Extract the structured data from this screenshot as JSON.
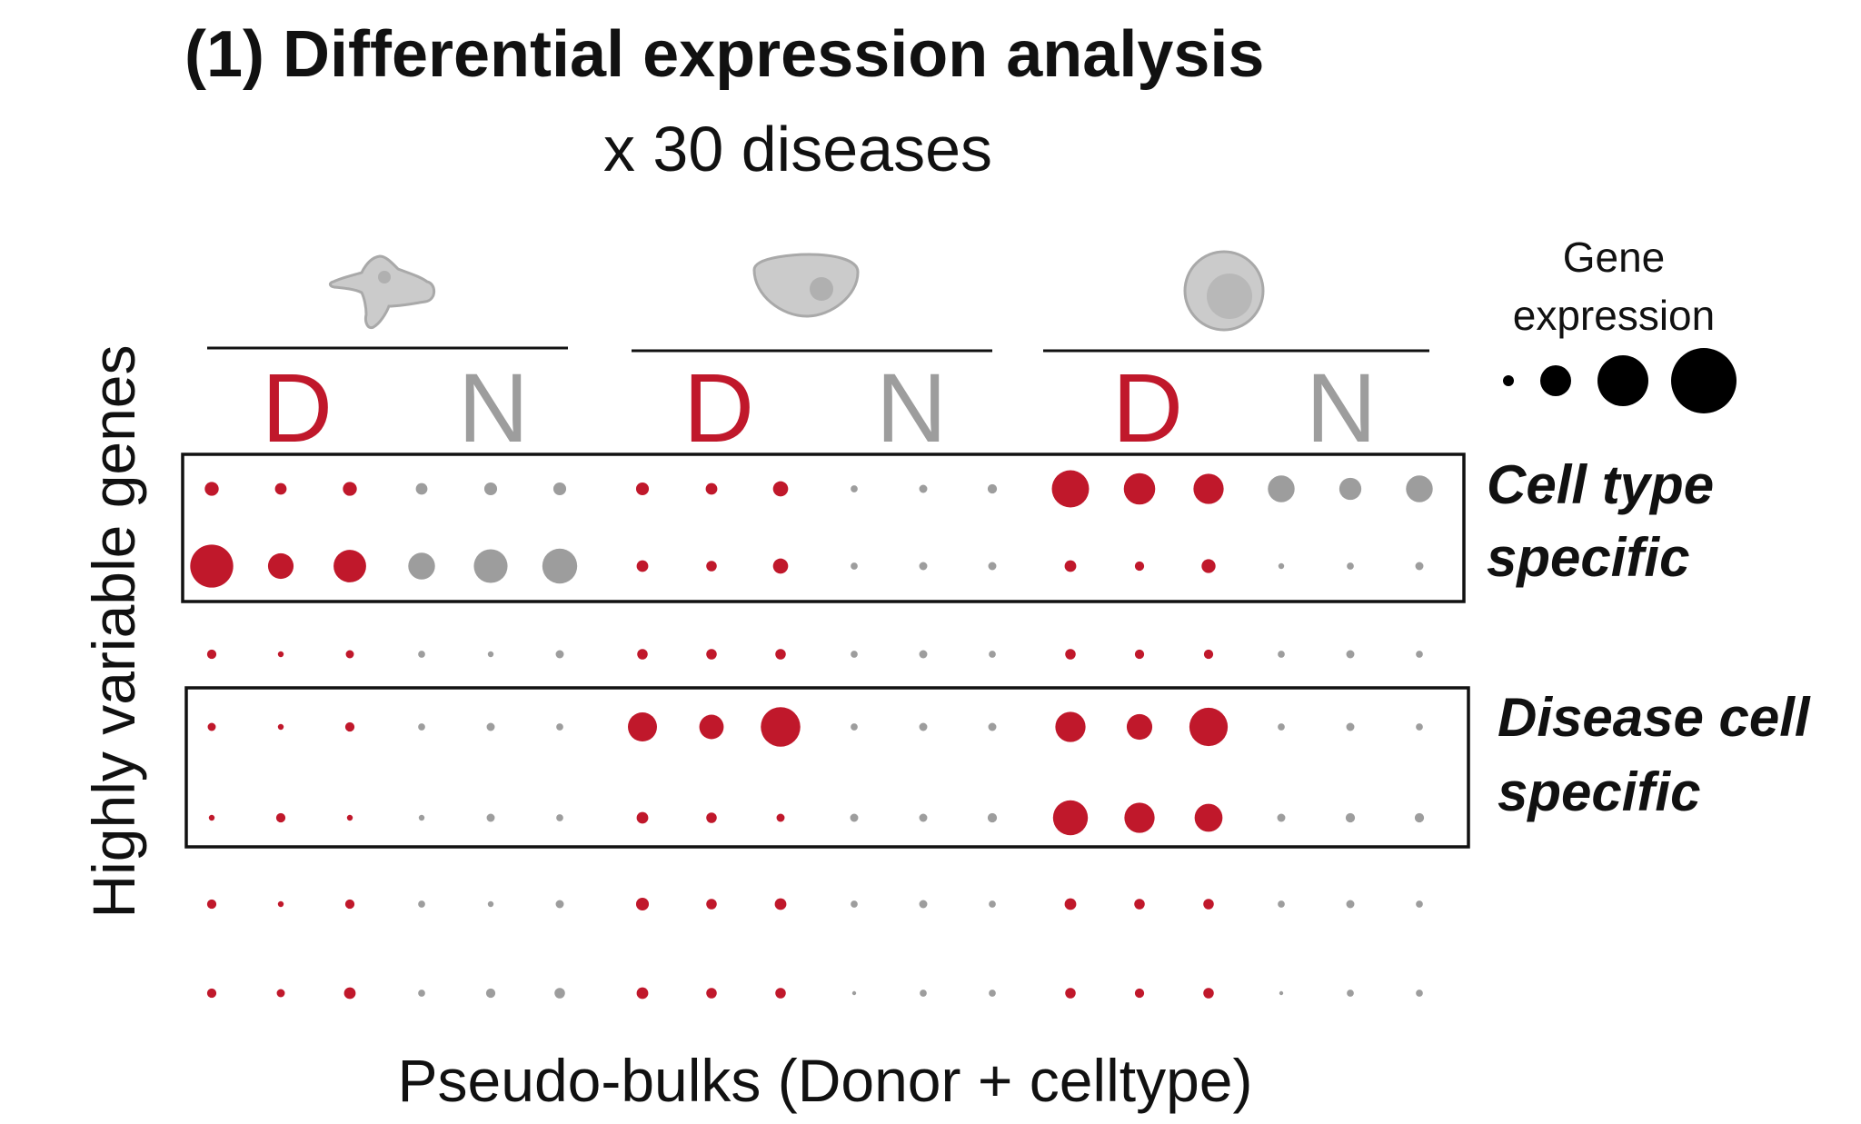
{
  "title": "(1) Differential expression analysis",
  "subtitle": "x 30 diseases",
  "y_axis_label": "Highly variable genes",
  "x_axis_label": "Pseudo-bulks (Donor + celltype)",
  "legend": {
    "title_line1": "Gene",
    "title_line2": "expression",
    "levels": [
      1,
      2,
      3,
      4
    ]
  },
  "colors": {
    "disease": "#c0182b",
    "normal": "#9d9d9d",
    "cell_fill": "#cbcbcb",
    "cell_stroke": "#a9a9a9",
    "frame": "#111111"
  },
  "cell_types": [
    {
      "icon": "dendritic-cell-icon",
      "groups": [
        {
          "label": "D",
          "kind": "disease"
        },
        {
          "label": "N",
          "kind": "normal"
        }
      ]
    },
    {
      "icon": "oval-cell-icon",
      "groups": [
        {
          "label": "D",
          "kind": "disease"
        },
        {
          "label": "N",
          "kind": "normal"
        }
      ]
    },
    {
      "icon": "round-cell-icon",
      "groups": [
        {
          "label": "D",
          "kind": "disease"
        },
        {
          "label": "N",
          "kind": "normal"
        }
      ]
    }
  ],
  "highlight_boxes": [
    {
      "label_line1": "Cell type",
      "label_line2": "specific",
      "rows": [
        0,
        1
      ]
    },
    {
      "label_line1": "Disease cell",
      "label_line2": "specific",
      "rows": [
        3,
        4
      ]
    }
  ],
  "chart_data": {
    "type": "dot-matrix",
    "columns_per_group": 3,
    "rows": [
      [
        1.2,
        1.0,
        1.2,
        1.0,
        1.1,
        1.1,
        1.1,
        1.0,
        1.3,
        0.6,
        0.7,
        0.8,
        3.2,
        2.7,
        2.6,
        2.3,
        1.9,
        2.3
      ],
      [
        3.7,
        2.2,
        2.8,
        2.3,
        2.9,
        3.0,
        1.0,
        0.9,
        1.3,
        0.6,
        0.7,
        0.7,
        1.0,
        0.8,
        1.2,
        0.5,
        0.6,
        0.7
      ],
      [
        0.8,
        0.5,
        0.7,
        0.6,
        0.5,
        0.7,
        0.9,
        0.9,
        0.9,
        0.6,
        0.7,
        0.6,
        0.9,
        0.8,
        0.8,
        0.6,
        0.7,
        0.6
      ],
      [
        0.7,
        0.5,
        0.8,
        0.6,
        0.7,
        0.6,
        2.5,
        2.1,
        3.4,
        0.6,
        0.7,
        0.7,
        2.6,
        2.2,
        3.3,
        0.6,
        0.7,
        0.6
      ],
      [
        0.5,
        0.8,
        0.5,
        0.5,
        0.7,
        0.6,
        1.0,
        0.9,
        0.7,
        0.7,
        0.7,
        0.8,
        3.0,
        2.6,
        2.4,
        0.7,
        0.8,
        0.8
      ],
      [
        0.8,
        0.5,
        0.8,
        0.6,
        0.5,
        0.7,
        1.1,
        0.9,
        1.0,
        0.6,
        0.7,
        0.6,
        1.0,
        0.9,
        0.9,
        0.6,
        0.7,
        0.6
      ],
      [
        0.8,
        0.7,
        1.0,
        0.6,
        0.8,
        0.9,
        1.0,
        0.9,
        0.9,
        0.3,
        0.6,
        0.6,
        0.9,
        0.8,
        0.9,
        0.3,
        0.6,
        0.6
      ]
    ]
  }
}
